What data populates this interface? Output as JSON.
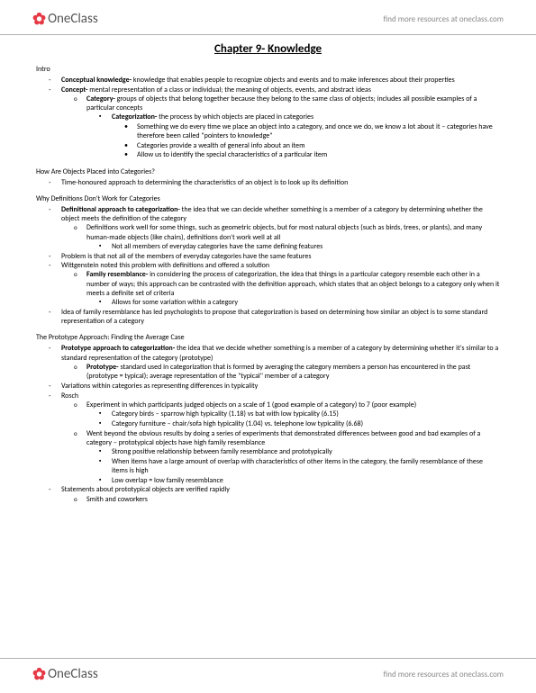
{
  "brand": {
    "logo_name": "OneClass",
    "tagline": "find more resources at oneclass.com"
  },
  "title": "Chapter 9- Knowledge",
  "sections": {
    "intro": {
      "heading": "Intro",
      "i1_b": "Conceptual knowledge-",
      "i1_t": " knowledge that enables people to recognize objects and events and to make inferences about their properties",
      "i2_b": "Concept-",
      "i2_t": " mental representation of a class or individual; the meaning of objects, events, and abstract ideas",
      "i2a_b": "Category-",
      "i2a_t": " groups of objects that belong together because they belong to the same class of objects; includes all possible examples of a particular concepts",
      "i2a1_b": "Categorization-",
      "i2a1_t": " the process by which objects are placed in categories",
      "i2a1a": "Something we do every time we place an object into a category, and once we do, we know a lot about it – categories have therefore been called \"pointers to knowledge\"",
      "i2a1b": "Categories provide a wealth of general info about an item",
      "i2a1c": "Allow us to identify the special characteristics of a particular item"
    },
    "placed": {
      "heading": "How Are Objects Placed into Categories?",
      "p1": "Time-honoured approach to determining the characteristics of an object is to look up its definition"
    },
    "defs": {
      "heading": "Why Definitions Don't Work for Categories",
      "d1_b": "Definitional approach to categorization-",
      "d1_t": " the idea that we can decide whether something is a member of a category by determining whether the object meets the definition of the category",
      "d1a": "Definitions work well for some things, such as geometric objects, but for most natural objects (such as birds, trees, or plants), and many human-made objects (like chairs), definitions don't work well at all",
      "d1a1": "Not all members of everyday categories have the same defining features",
      "d2": "Problem is that not all of the members of everyday categories have the same features",
      "d3": "Wittgenstein noted this problem with definitions and offered a solution",
      "d3a_b": "Family resemblance-",
      "d3a_t": " in considering the process of categorization, the idea that things in a particular category resemble each other in a number of ways; this approach can be contrasted with the definition approach, which states that an object belongs to a category only when it meets a definite set of criteria",
      "d3a1": "Allows for some variation within a category",
      "d4": "Idea of family resemblance has led psychologists to propose that categorization is based on determining how similar an object is to some standard representation of a category"
    },
    "proto": {
      "heading": "The Prototype Approach: Finding the Average Case",
      "pr1_b": "Prototype approach to categorization-",
      "pr1_t": " the idea that we decide whether something is a member of a category by determining whether it's similar to a standard representation of the category (prototype)",
      "pr1a_b": "Prototype-",
      "pr1a_t": " standard used in categorization that is formed by averaging the category members a person has encountered in the past (prototype = typical); average representation of the \"typical\" member of a category",
      "pr2": "Variations within categories as representing differences in typicality",
      "pr3": "Rosch",
      "pr3a": "Experiment in which participants judged objects on a scale of 1 (good example of a category) to 7 (poor example)",
      "pr3a1": "Category birds – sparrow high typicality (1.18) vs bat with low typicality (6.15)",
      "pr3a2": "Category furniture – chair/sofa high typicality (1.04) vs. telephone low typicality (6.68)",
      "pr3b": "Went beyond the obvious results by doing a series of experiments that demonstrated differences between good and bad examples of a category – prototypical objects have high family resemblance",
      "pr3b1": "Strong positive relationship between family resemblance and prototypically",
      "pr3b2": "When items have a large amount of overlap with characteristics of other items in the category, the family resemblance of these items is high",
      "pr3b3": "Low overlap = low family resemblance",
      "pr4": "Statements about prototypical objects are verified rapidly",
      "pr4a": "Smith and coworkers"
    }
  }
}
